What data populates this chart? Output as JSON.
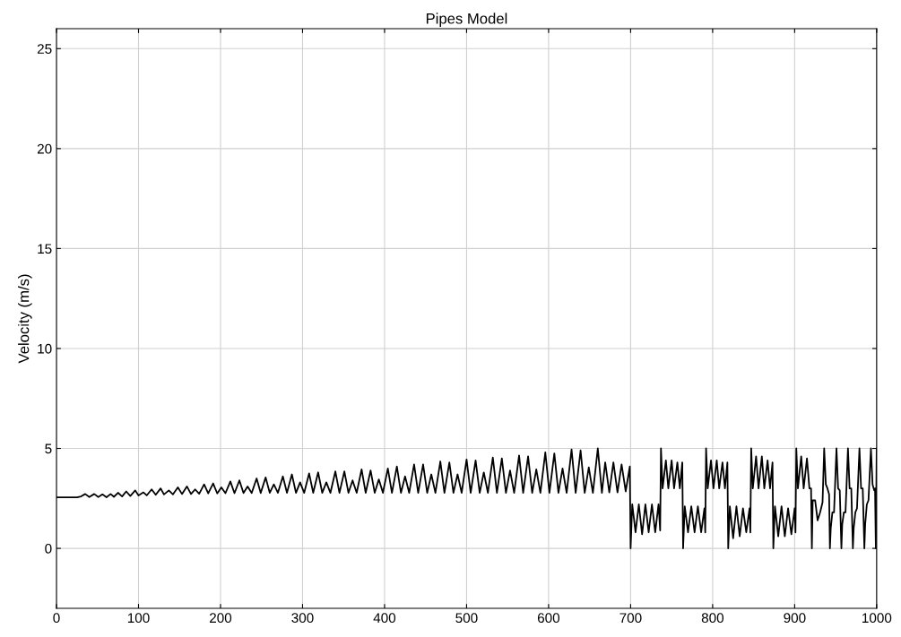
{
  "chart_data": {
    "type": "line",
    "title": "Pipes Model",
    "ylabel": "Velocity (m/s)",
    "color": "#000000",
    "grid": true,
    "legend": false,
    "xlim": [
      0,
      1000
    ],
    "ylim": [
      -3,
      26
    ],
    "xticks": [
      0,
      100,
      200,
      300,
      400,
      500,
      600,
      700,
      800,
      900,
      1000
    ],
    "yticks": [
      0,
      5,
      10,
      15,
      20,
      25
    ],
    "x": [
      0,
      25,
      30,
      35,
      40,
      46,
      51,
      56,
      61,
      66,
      70,
      75,
      80,
      85,
      90,
      96,
      100,
      106,
      110,
      116,
      121,
      127,
      131,
      137,
      142,
      148,
      153,
      159,
      164,
      169,
      174,
      180,
      185,
      191,
      196,
      201,
      206,
      212,
      217,
      223,
      228,
      233,
      238,
      244,
      249,
      255,
      260,
      265,
      270,
      276,
      281,
      287,
      292,
      297,
      302,
      308,
      313,
      319,
      324,
      329,
      334,
      340,
      345,
      351,
      356,
      361,
      366,
      372,
      377,
      383,
      388,
      393,
      398,
      404,
      409,
      415,
      420,
      425,
      430,
      436,
      441,
      447,
      452,
      457,
      462,
      468,
      473,
      479,
      484,
      489,
      494,
      500,
      505,
      511,
      516,
      521,
      526,
      532,
      537,
      543,
      548,
      553,
      558,
      564,
      569,
      575,
      580,
      585,
      590,
      596,
      601,
      607,
      612,
      617,
      622,
      628,
      633,
      639,
      644,
      649,
      654,
      660,
      665,
      669,
      674,
      679,
      684,
      689,
      694,
      699,
      700,
      702,
      706,
      710,
      714,
      718,
      722,
      726,
      730,
      734,
      736,
      737,
      739,
      743,
      746,
      750,
      753,
      757,
      760,
      763,
      764,
      766,
      770,
      774,
      778,
      782,
      786,
      790,
      791,
      792,
      794,
      798,
      801,
      805,
      808,
      812,
      815,
      818,
      819,
      821,
      825,
      829,
      833,
      837,
      841,
      845,
      846,
      847,
      849,
      853,
      856,
      860,
      863,
      867,
      870,
      873,
      874,
      876,
      880,
      884,
      888,
      892,
      896,
      900,
      901,
      902,
      904,
      908,
      911,
      915,
      918,
      920,
      921,
      922,
      925,
      928,
      931,
      934,
      936,
      938,
      940,
      942,
      943,
      944,
      946,
      948,
      951,
      953,
      955,
      957,
      958,
      960,
      962,
      965,
      967,
      969,
      971,
      972,
      974,
      976,
      979,
      981,
      983,
      985,
      986,
      988,
      990,
      993,
      995,
      997,
      998,
      999,
      1000
    ],
    "values": [
      2.55,
      2.55,
      2.6,
      2.72,
      2.57,
      2.72,
      2.57,
      2.7,
      2.56,
      2.72,
      2.58,
      2.78,
      2.6,
      2.85,
      2.62,
      2.9,
      2.65,
      2.8,
      2.65,
      2.95,
      2.68,
      3.0,
      2.7,
      2.9,
      2.7,
      3.05,
      2.72,
      3.1,
      2.72,
      2.95,
      2.73,
      3.2,
      2.75,
      3.25,
      2.75,
      3.05,
      2.76,
      3.35,
      2.76,
      3.4,
      2.77,
      3.1,
      2.77,
      3.5,
      2.77,
      3.55,
      2.78,
      3.2,
      2.78,
      3.6,
      2.78,
      3.7,
      2.78,
      3.3,
      2.78,
      3.75,
      2.78,
      3.8,
      2.78,
      3.3,
      2.78,
      3.85,
      2.78,
      3.85,
      2.78,
      3.4,
      2.78,
      3.95,
      2.78,
      3.9,
      2.78,
      3.45,
      2.78,
      4.0,
      2.78,
      4.1,
      2.78,
      3.6,
      2.78,
      4.2,
      2.78,
      4.2,
      2.78,
      3.7,
      2.78,
      4.35,
      2.78,
      4.3,
      2.78,
      3.7,
      2.78,
      4.45,
      2.78,
      4.4,
      2.78,
      3.8,
      2.78,
      4.55,
      2.78,
      4.5,
      2.78,
      3.9,
      2.78,
      4.65,
      2.78,
      4.6,
      2.78,
      3.95,
      2.78,
      4.8,
      2.78,
      4.75,
      2.78,
      4.0,
      2.78,
      4.95,
      2.78,
      4.9,
      2.78,
      4.05,
      2.78,
      5.0,
      2.78,
      4.3,
      2.8,
      4.3,
      2.8,
      4.2,
      2.85,
      4.1,
      0,
      2.2,
      0.8,
      2.2,
      0.7,
      2.2,
      0.8,
      2.2,
      0.8,
      2.2,
      0.9,
      5.0,
      3.0,
      4.4,
      3.0,
      4.4,
      3.0,
      4.3,
      3.0,
      4.3,
      0,
      2.1,
      0.8,
      2.1,
      0.8,
      2.1,
      0.8,
      2.0,
      0.8,
      5.0,
      3.0,
      4.4,
      3.0,
      4.4,
      3.0,
      4.3,
      3.0,
      4.3,
      0,
      2.1,
      0.5,
      2.1,
      0.6,
      2.0,
      0.8,
      2.0,
      0.8,
      5.0,
      3.0,
      4.6,
      3.0,
      4.6,
      3.0,
      4.4,
      3.0,
      4.3,
      0,
      2.1,
      0.6,
      2.1,
      0.6,
      2.0,
      0.7,
      2.0,
      0.8,
      5.0,
      3.0,
      4.6,
      3.0,
      4.5,
      3.0,
      3.0,
      0,
      2.4,
      2.4,
      1.4,
      1.8,
      2.3,
      5.0,
      3.2,
      3.0,
      2.7,
      0,
      1.0,
      1.8,
      1.8,
      5.0,
      3.0,
      2.9,
      0,
      1.2,
      1.8,
      1.8,
      5.0,
      3.0,
      3.0,
      0,
      1.0,
      1.8,
      2.0,
      5.0,
      3.0,
      3.0,
      0,
      1.2,
      2.2,
      2.4,
      5.0,
      3.2,
      2.9,
      3.0,
      0,
      5.0
    ]
  }
}
